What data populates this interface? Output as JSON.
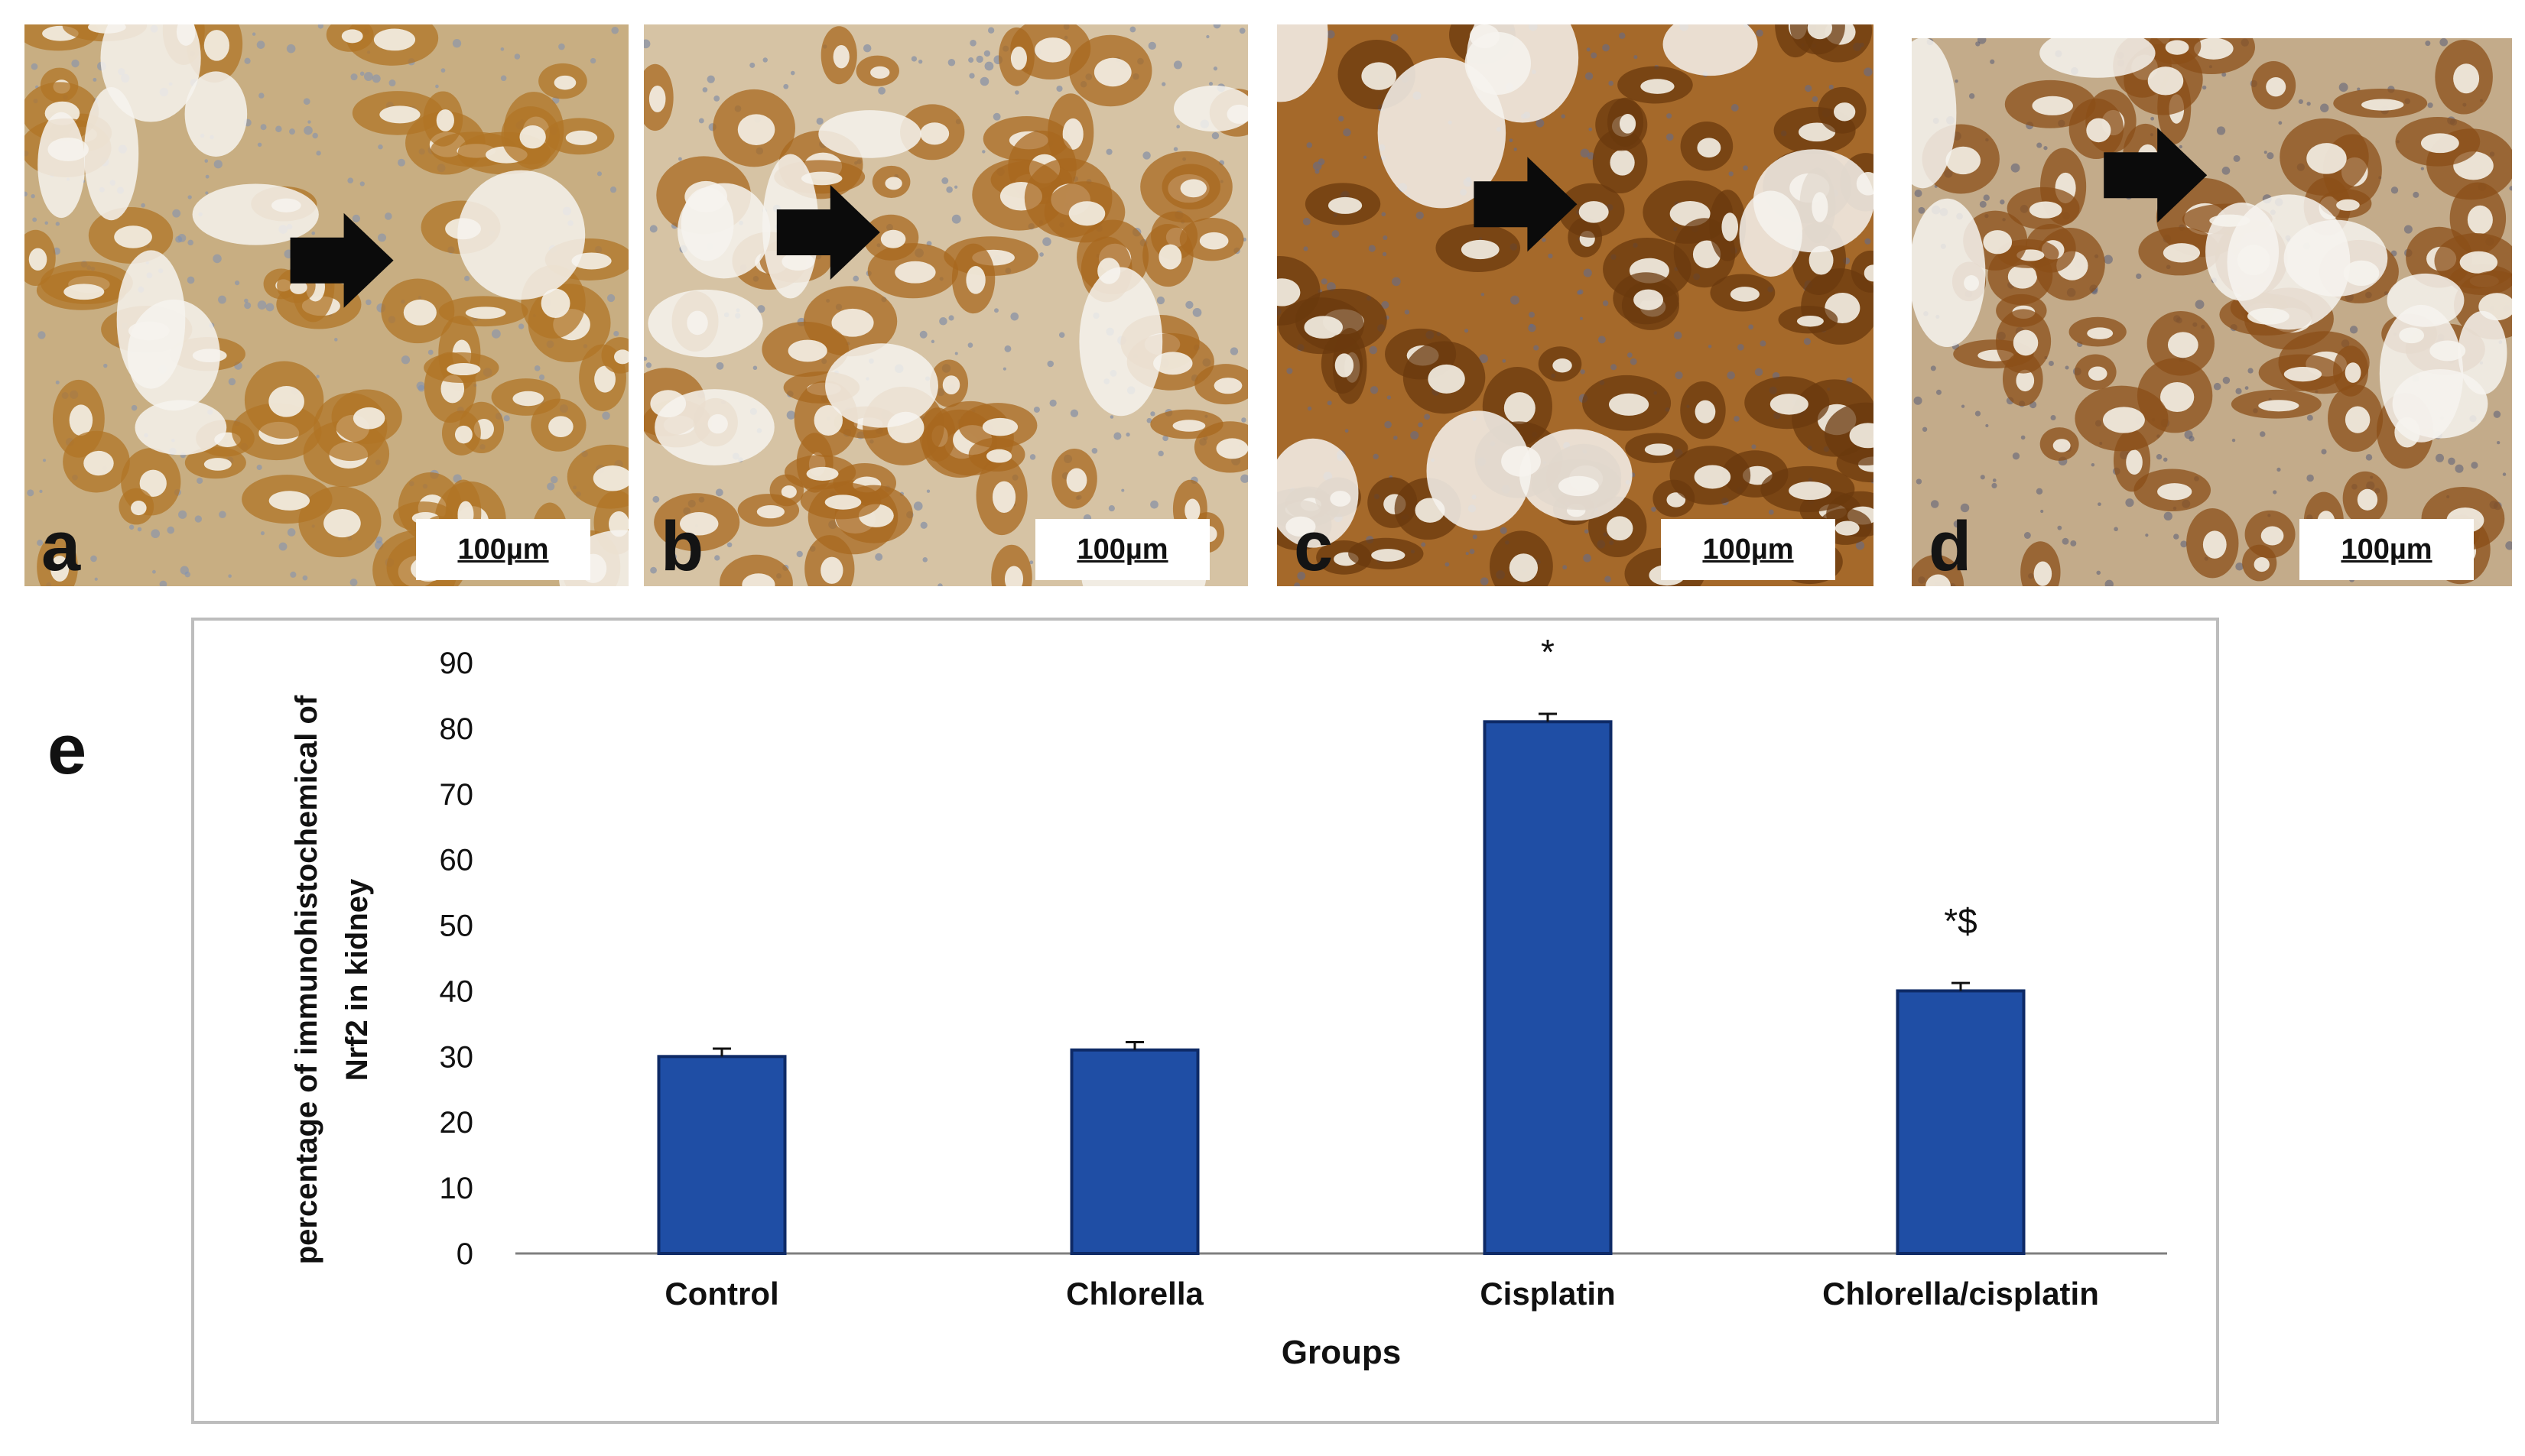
{
  "panels": [
    {
      "letter": "a",
      "scale": "100µm",
      "bg": "#c8ae82",
      "stain": "#b07426",
      "nuclei": "#7b8fb6"
    },
    {
      "letter": "b",
      "scale": "100µm",
      "bg": "#d6c3a4",
      "stain": "#a8681f",
      "nuclei": "#6e7fa5"
    },
    {
      "letter": "c",
      "scale": "100µm",
      "bg": "#a5692a",
      "stain": "#6b3a0e",
      "nuclei": "#5f6c92"
    },
    {
      "letter": "d",
      "scale": "100µm",
      "bg": "#c3ab8a",
      "stain": "#8b4f18",
      "nuclei": "#575c78"
    }
  ],
  "panel_e_letter": "e",
  "chart_data": {
    "type": "bar",
    "categories": [
      "Control",
      "Chlorella",
      "Cisplatin",
      "Chlorella/cisplatin"
    ],
    "values": [
      30,
      31,
      81,
      40
    ],
    "errors": [
      1.2,
      1.2,
      1.2,
      1.2
    ],
    "annotations": [
      "",
      "",
      "*",
      "*$"
    ],
    "xlabel": "Groups",
    "ylabel_lines": [
      "percentage of immunohistochemical of",
      "Nrf2 in kidney"
    ],
    "ylim": [
      0,
      90
    ],
    "yticks": [
      0,
      10,
      20,
      30,
      40,
      50,
      60,
      70,
      80,
      90
    ],
    "bar_color": "#1f4ea5",
    "bar_edge": "#0e2a66",
    "grid": false,
    "legend": "none"
  }
}
